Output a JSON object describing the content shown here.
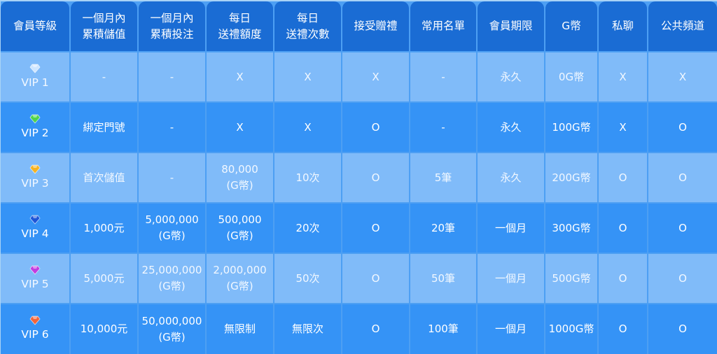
{
  "headers": [
    "會員等級",
    "一個月內\n累積儲值",
    "一個月內\n累積投注",
    "每日\n送禮額度",
    "每日\n送禮次數",
    "接受贈禮",
    "常用名單",
    "會員期限",
    "G幣",
    "私聊",
    "公共頻道"
  ],
  "rows": [
    {
      "level": "VIP 1",
      "gem_color": "#cfe6ff",
      "cells": [
        "-",
        "-",
        "X",
        "X",
        "X",
        "-",
        "永久",
        "0G幣",
        "X",
        "X"
      ]
    },
    {
      "level": "VIP 2",
      "gem_color": "#4fd34a",
      "cells": [
        "綁定門號",
        "-",
        "X",
        "X",
        "O",
        "-",
        "永久",
        "100G幣",
        "X",
        "O"
      ]
    },
    {
      "level": "VIP 3",
      "gem_color": "#f5b321",
      "cells": [
        "首次儲值",
        "-",
        "80,000\n(G幣)",
        "10次",
        "O",
        "5筆",
        "永久",
        "200G幣",
        "O",
        "O"
      ]
    },
    {
      "level": "VIP 4",
      "gem_color": "#1d55d8",
      "cells": [
        "1,000元",
        "5,000,000\n(G幣)",
        "500,000\n(G幣)",
        "20次",
        "O",
        "20筆",
        "一個月",
        "300G幣",
        "O",
        "O"
      ]
    },
    {
      "level": "VIP 5",
      "gem_color": "#c23de0",
      "cells": [
        "5,000元",
        "25,000,000\n(G幣)",
        "2,000,000\n(G幣)",
        "50次",
        "O",
        "50筆",
        "一個月",
        "500G幣",
        "O",
        "O"
      ]
    },
    {
      "level": "VIP 6",
      "gem_color": "#f2643a",
      "cells": [
        "10,000元",
        "50,000,000\n(G幣)",
        "無限制",
        "無限次",
        "O",
        "100筆",
        "一個月",
        "1000G幣",
        "O",
        "O"
      ]
    }
  ],
  "colors": {
    "header": "#1a6cd4",
    "row_light": "#80bbf9",
    "row_dark": "#3593f6"
  }
}
